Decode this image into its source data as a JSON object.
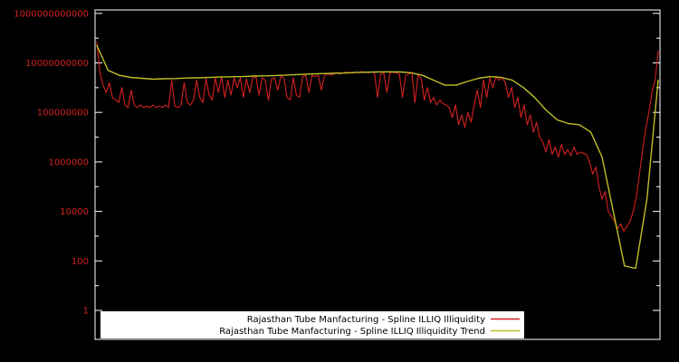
{
  "page": {
    "background_color": "#000000",
    "plot_border_color": "#ffffff",
    "y_label_color": "#d42121",
    "legend_box_color": "#ffffff",
    "legend_text_color": "#000000"
  },
  "chart_data": {
    "type": "line",
    "title": "",
    "xlabel": "",
    "ylabel": "",
    "y_scale": "log",
    "grid": false,
    "legend_position": "bottom-center-inside",
    "x_tick_labels": [],
    "ylim": [
      1,
      1000000000000
    ],
    "y_ticks": [
      {
        "label": "1",
        "value": 1
      },
      {
        "label": "100",
        "value": 100
      },
      {
        "label": "10000",
        "value": 10000
      },
      {
        "label": "1000000",
        "value": 1000000
      },
      {
        "label": "100000000",
        "value": 100000000
      },
      {
        "label": "10000000000",
        "value": 10000000000
      },
      {
        "label": "1000000000000",
        "value": 1000000000000
      }
    ],
    "y_minor_ticks": [
      10,
      1000,
      100000,
      10000000,
      1000000000,
      100000000000
    ],
    "series": [
      {
        "name": "Rajasthan Tube Manfacturing - Spline ILLIQ Illiquidity",
        "color": "#d42121",
        "values": [
          70000000000.0,
          4000000000.0,
          1260000000.0,
          630000000.0,
          1580000000.0,
          400000000.0,
          316000000.0,
          250000000.0,
          1000000000.0,
          200000000.0,
          158000000.0,
          790000000.0,
          200000000.0,
          158000000.0,
          200000000.0,
          158000000.0,
          178000000.0,
          158000000.0,
          200000000.0,
          158000000.0,
          178000000.0,
          158000000.0,
          200000000.0,
          158000000.0,
          2000000000.0,
          178000000.0,
          158000000.0,
          200000000.0,
          1580000000.0,
          250000000.0,
          200000000.0,
          316000000.0,
          2000000000.0,
          400000000.0,
          250000000.0,
          2240000000.0,
          500000000.0,
          316000000.0,
          2500000000.0,
          630000000.0,
          2800000000.0,
          400000000.0,
          2000000000.0,
          500000000.0,
          2500000000.0,
          1000000000.0,
          2500000000.0,
          400000000.0,
          2240000000.0,
          630000000.0,
          2500000000.0,
          2800000000.0,
          500000000.0,
          2500000000.0,
          2000000000.0,
          316000000.0,
          2240000000.0,
          2500000000.0,
          790000000.0,
          2800000000.0,
          2500000000.0,
          400000000.0,
          316000000.0,
          2500000000.0,
          500000000.0,
          400000000.0,
          2800000000.0,
          3160000000.0,
          630000000.0,
          3160000000.0,
          2800000000.0,
          3160000000.0,
          790000000.0,
          3160000000.0,
          3550000000.0,
          3160000000.0,
          3550000000.0,
          4000000000.0,
          3550000000.0,
          4000000000.0,
          4200000000.0,
          4000000000.0,
          3800000000.0,
          4300000000.0,
          4000000000.0,
          4500000000.0,
          4200000000.0,
          4000000000.0,
          4400000000.0,
          4000000000.0,
          400000000.0,
          3550000000.0,
          4000000000.0,
          630000000.0,
          4000000000.0,
          4200000000.0,
          4000000000.0,
          3550000000.0,
          400000000.0,
          3160000000.0,
          3550000000.0,
          4000000000.0,
          250000000.0,
          3160000000.0,
          2500000000.0,
          316000000.0,
          1000000000.0,
          250000000.0,
          400000000.0,
          200000000.0,
          316000000.0,
          224000000.0,
          200000000.0,
          158000000.0,
          63000000.0,
          200000000.0,
          31600000.0,
          79000000.0,
          25000000.0,
          100000000.0,
          40000000.0,
          200000000.0,
          790000000.0,
          158000000.0,
          2000000000.0,
          400000000.0,
          2500000000.0,
          1000000000.0,
          2750000000.0,
          2000000000.0,
          2500000000.0,
          1580000000.0,
          400000000.0,
          1000000000.0,
          158000000.0,
          400000000.0,
          63000000.0,
          200000000.0,
          31600000.0,
          79000000.0,
          15800000.0,
          40000000.0,
          10000000.0,
          6300000.0,
          2500000.0,
          7900000.0,
          2000000.0,
          4000000.0,
          1580000.0,
          5000000.0,
          2000000.0,
          3160000.0,
          1780000.0,
          4000000.0,
          2000000.0,
          2500000.0,
          2240000.0,
          2000000.0,
          1000000.0,
          316000.0,
          630000.0,
          100000.0,
          31600.0,
          63000.0,
          10000.0,
          6300.0,
          4000.0,
          2000.0,
          3160.0,
          1580.0,
          2500.0,
          4000.0,
          10000.0,
          40000.0,
          316000.0,
          3160000.0,
          20000000.0,
          100000000.0,
          630000000.0,
          2000000000.0,
          30000000000.0
        ]
      },
      {
        "name": "Rajasthan Tube Manfacturing - Spline ILLIQ Illiquidity Trend",
        "color": "#bfbf27",
        "values": [
          50000000000.0,
          5000000000.0,
          3160000000.0,
          2600000000.0,
          2400000000.0,
          2200000000.0,
          2300000000.0,
          2340000000.0,
          2450000000.0,
          2500000000.0,
          2570000000.0,
          2700000000.0,
          2750000000.0,
          2800000000.0,
          2950000000.0,
          3000000000.0,
          3100000000.0,
          3240000000.0,
          3400000000.0,
          3550000000.0,
          3700000000.0,
          3800000000.0,
          3900000000.0,
          4100000000.0,
          4200000000.0,
          4300000000.0,
          4400000000.0,
          4300000000.0,
          4000000000.0,
          3160000000.0,
          2000000000.0,
          1260000000.0,
          1260000000.0,
          1780000000.0,
          2400000000.0,
          2800000000.0,
          2600000000.0,
          2000000000.0,
          1000000000.0,
          400000000.0,
          126000000.0,
          50000000.0,
          35500000.0,
          31600000.0,
          15800000.0,
          1580000.0,
          10000.0,
          63,
          50,
          31600.0,
          2000000000.0
        ]
      }
    ]
  }
}
